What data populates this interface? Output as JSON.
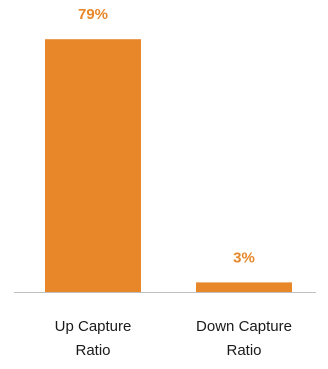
{
  "colors": {
    "bar": "#E8872A",
    "label": "#E8872A",
    "axis": "#BFBFBF",
    "text": "#1A1A1A"
  },
  "chart_data": {
    "type": "bar",
    "categories": [
      [
        "Up Capture",
        "Ratio"
      ],
      [
        "Down Capture",
        "Ratio"
      ]
    ],
    "values": [
      79,
      3
    ],
    "data_labels": [
      "79%",
      "3%"
    ],
    "ylim": [
      0,
      85
    ],
    "title": "",
    "xlabel": "",
    "ylabel": "",
    "grid": false,
    "legend": "none"
  }
}
